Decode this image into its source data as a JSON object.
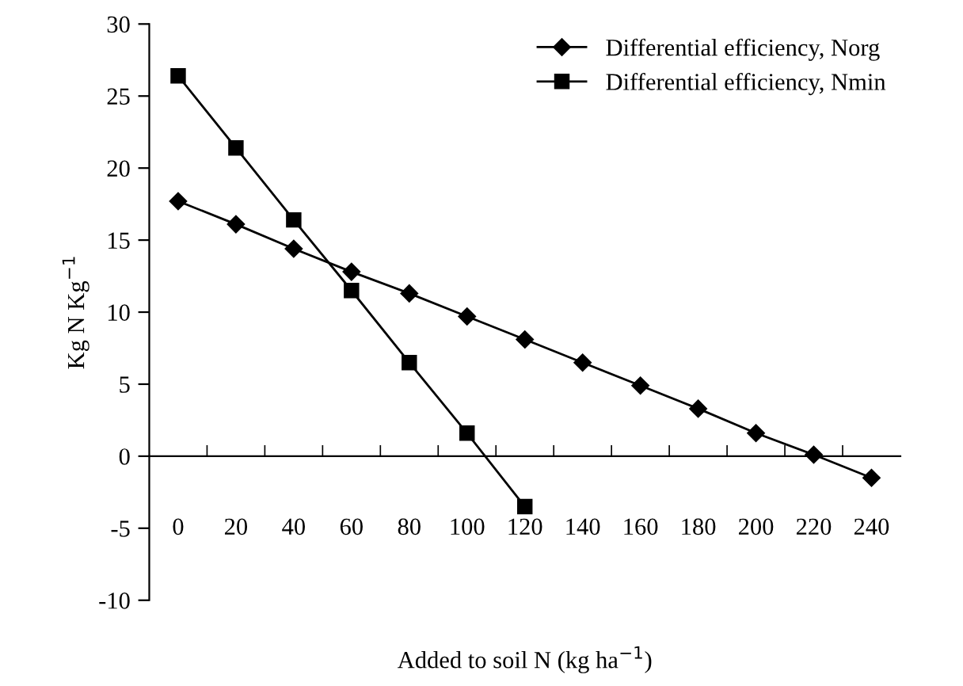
{
  "chart_data": {
    "type": "line",
    "xlabel": "Added to soil N (kg ha$^{−1}$)",
    "ylabel": "Kg N Kg$^{−1}$",
    "categories": [
      "0",
      "20",
      "40",
      "60",
      "80",
      "100",
      "120",
      "140",
      "160",
      "180",
      "200",
      "220",
      "240"
    ],
    "series": [
      {
        "name": "Differential efficiency, Norg",
        "color": "#000000",
        "marker": "diamond",
        "values": [
          17.7,
          16.1,
          14.4,
          12.8,
          11.3,
          9.7,
          8.1,
          6.5,
          4.9,
          3.3,
          1.6,
          0.1,
          -1.5
        ]
      },
      {
        "name": "Differential efficiency, Nmin",
        "color": "#000000",
        "marker": "square",
        "values": [
          26.4,
          21.4,
          16.4,
          11.5,
          6.5,
          1.6,
          -3.5,
          null,
          null,
          null,
          null,
          null,
          null
        ]
      }
    ],
    "ylim": [
      -10,
      30
    ],
    "yticks": [
      {
        "value": -10,
        "label": "-10"
      },
      {
        "value": -5,
        "label": "-5"
      },
      0,
      5,
      10,
      15,
      20,
      25,
      30
    ],
    "grid": false,
    "legend": "top right",
    "line_style": "solid"
  }
}
